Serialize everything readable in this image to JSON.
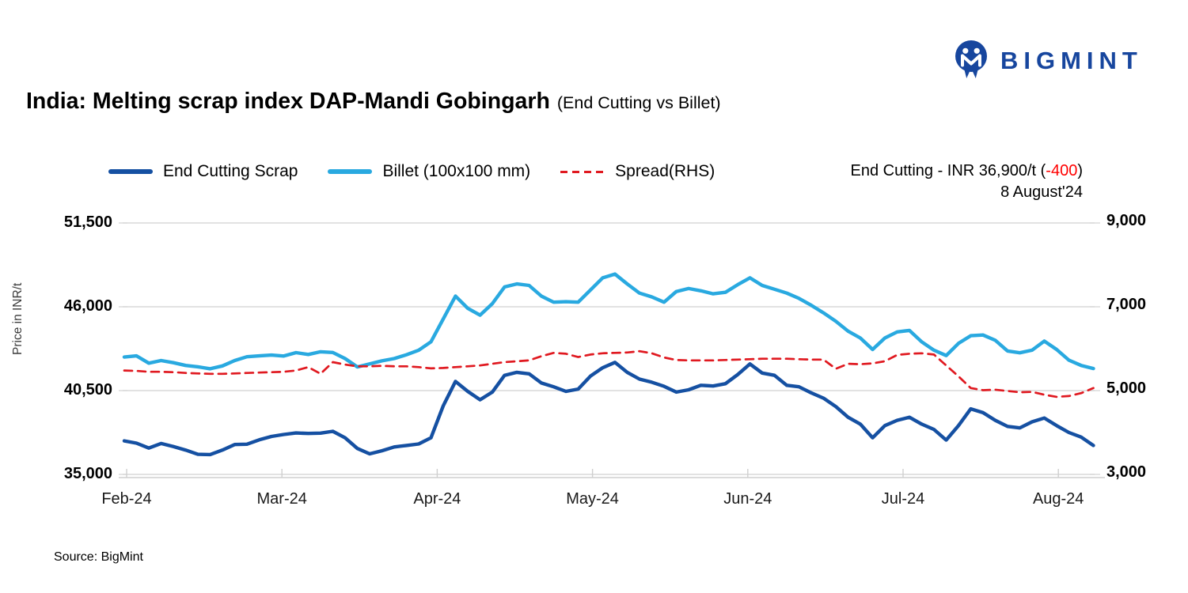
{
  "brand": {
    "logo_text": "BIGMINT",
    "logo_color": "#17469E"
  },
  "title": {
    "main": "India: Melting scrap index DAP-Mandi Gobingarh",
    "sub": "(End Cutting vs Billet)"
  },
  "annotation": {
    "prefix": "End Cutting - INR 36,900/t (",
    "delta": "-400",
    "suffix": ")",
    "date": "8 August'24",
    "delta_color": "#FF0000"
  },
  "source": "Source: BigMint",
  "chart_data": {
    "type": "line",
    "title": "India: Melting scrap index DAP-Mandi Gobingarh (End Cutting vs Billet)",
    "grid": true,
    "legend_position": "top",
    "x_axis": {
      "labels": [
        "Feb-24",
        "Mar-24",
        "Apr-24",
        "May-24",
        "Jun-24",
        "Jul-24",
        "Aug-24"
      ]
    },
    "left_axis": {
      "title": "Price in INR/t",
      "min": 35000,
      "max": 51500,
      "ticks": [
        51500,
        46000,
        40500,
        35000
      ],
      "tick_labels": [
        "51,500",
        "46,000",
        "40,500",
        "35,000"
      ]
    },
    "right_axis": {
      "min": 3000,
      "max": 9000,
      "ticks": [
        9000,
        7000,
        5000,
        3000
      ],
      "tick_labels": [
        "9,000",
        "7,000",
        "5,000",
        "3,000"
      ]
    },
    "series": [
      {
        "name": "End Cutting Scrap",
        "axis": "left",
        "color": "#1550A2",
        "style": "solid",
        "values": [
          37200,
          37050,
          36730,
          37030,
          36830,
          36600,
          36320,
          36300,
          36600,
          36960,
          36980,
          37270,
          37490,
          37620,
          37720,
          37690,
          37710,
          37830,
          37400,
          36700,
          36350,
          36550,
          36800,
          36900,
          37000,
          37400,
          39500,
          41100,
          40450,
          39900,
          40400,
          41500,
          41700,
          41600,
          41000,
          40750,
          40450,
          40600,
          41450,
          42000,
          42350,
          41700,
          41250,
          41050,
          40780,
          40400,
          40550,
          40850,
          40800,
          40950,
          41550,
          42250,
          41650,
          41500,
          40850,
          40750,
          40350,
          40000,
          39450,
          38750,
          38300,
          37400,
          38200,
          38550,
          38750,
          38300,
          37950,
          37250,
          38200,
          39300,
          39050,
          38550,
          38150,
          38050,
          38450,
          38700,
          38200,
          37750,
          37450,
          36900
        ]
      },
      {
        "name": "Billet (100x100 mm)",
        "axis": "left",
        "color": "#29A9E0",
        "style": "solid",
        "values": [
          42700,
          42780,
          42300,
          42470,
          42330,
          42150,
          42060,
          41930,
          42120,
          42470,
          42720,
          42780,
          42830,
          42770,
          42990,
          42870,
          43050,
          43000,
          42600,
          42050,
          42250,
          42450,
          42600,
          42850,
          43150,
          43700,
          45200,
          46700,
          45900,
          45450,
          46200,
          47300,
          47500,
          47400,
          46700,
          46300,
          46330,
          46300,
          47100,
          47900,
          48150,
          47500,
          46900,
          46650,
          46300,
          47000,
          47200,
          47050,
          46850,
          46950,
          47450,
          47900,
          47400,
          47150,
          46900,
          46550,
          46100,
          45600,
          45050,
          44400,
          43950,
          43200,
          43950,
          44350,
          44450,
          43700,
          43150,
          42800,
          43600,
          44100,
          44150,
          43800,
          43100,
          42980,
          43150,
          43750,
          43200,
          42500,
          42150,
          41950
        ]
      },
      {
        "name": "Spread(RHS)",
        "axis": "right",
        "color": "#E01920",
        "style": "dashed",
        "values": [
          5480,
          5470,
          5450,
          5450,
          5440,
          5420,
          5410,
          5400,
          5400,
          5410,
          5420,
          5430,
          5440,
          5450,
          5480,
          5560,
          5400,
          5680,
          5620,
          5580,
          5580,
          5590,
          5580,
          5580,
          5560,
          5530,
          5540,
          5560,
          5580,
          5600,
          5640,
          5680,
          5700,
          5720,
          5820,
          5900,
          5880,
          5800,
          5860,
          5890,
          5900,
          5910,
          5940,
          5890,
          5790,
          5730,
          5720,
          5720,
          5720,
          5730,
          5740,
          5750,
          5760,
          5760,
          5760,
          5750,
          5740,
          5740,
          5520,
          5640,
          5630,
          5650,
          5700,
          5850,
          5880,
          5890,
          5860,
          5600,
          5340,
          5060,
          5010,
          5020,
          4990,
          4960,
          4970,
          4900,
          4850,
          4870,
          4940,
          5060
        ]
      }
    ]
  }
}
